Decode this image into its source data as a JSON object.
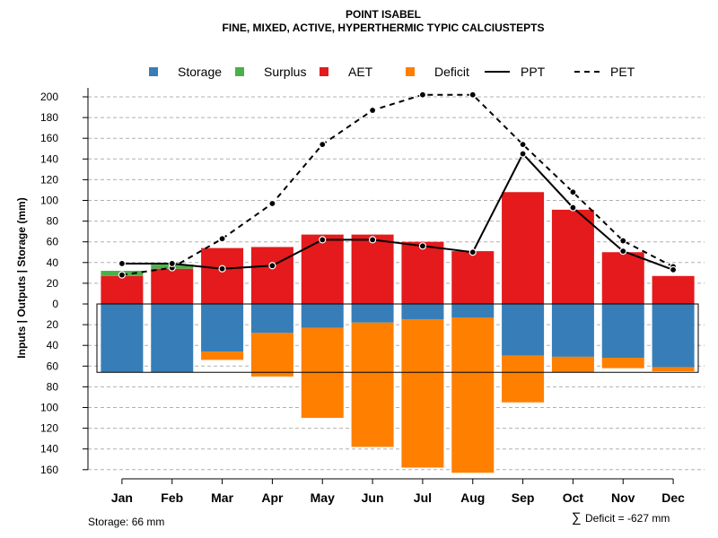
{
  "chart_data": {
    "type": "bar",
    "title": "POINT ISABEL",
    "subtitle": "FINE, MIXED, ACTIVE, HYPERTHERMIC TYPIC CALCIUSTEPTS",
    "ylabel": "Inputs | Outputs | Storage    (mm)",
    "categories": [
      "Jan",
      "Feb",
      "Mar",
      "Apr",
      "May",
      "Jun",
      "Jul",
      "Aug",
      "Sep",
      "Oct",
      "Nov",
      "Dec"
    ],
    "ytick_labels": [
      "200",
      "180",
      "160",
      "140",
      "120",
      "100",
      "80",
      "60",
      "40",
      "20",
      "0",
      "20",
      "40",
      "60",
      "80",
      "100",
      "120",
      "140",
      "160"
    ],
    "ytick_values": [
      200,
      180,
      160,
      140,
      120,
      100,
      80,
      60,
      40,
      20,
      0,
      -20,
      -40,
      -60,
      -80,
      -100,
      -120,
      -140,
      -160
    ],
    "ylim": [
      -160,
      200
    ],
    "legend": [
      {
        "label": "Storage",
        "type": "square",
        "color": "#377EB8"
      },
      {
        "label": "Surplus",
        "type": "square",
        "color": "#4DAF4A"
      },
      {
        "label": "AET",
        "type": "square",
        "color": "#E41A1C"
      },
      {
        "label": "Deficit",
        "type": "square",
        "color": "#FF7F00"
      },
      {
        "label": "PPT",
        "type": "solid-line",
        "color": "#000000"
      },
      {
        "label": "PET",
        "type": "dashed-line",
        "color": "#000000"
      }
    ],
    "series": [
      {
        "name": "AET",
        "color": "#E41A1C",
        "values": [
          27,
          34,
          54,
          55,
          67,
          67,
          60,
          51,
          108,
          91,
          50,
          27
        ]
      },
      {
        "name": "Surplus",
        "color": "#4DAF4A",
        "values": [
          5,
          4,
          0,
          0,
          0,
          0,
          0,
          0,
          0,
          0,
          0,
          0
        ]
      },
      {
        "name": "Storage",
        "color": "#377EB8",
        "values": [
          66,
          66,
          46,
          28,
          23,
          18,
          15,
          13,
          50,
          51,
          52,
          61
        ]
      },
      {
        "name": "Deficit",
        "color": "#FF7F00",
        "values": [
          0,
          0,
          8,
          42,
          87,
          120,
          143,
          150,
          45,
          15,
          10,
          4
        ]
      },
      {
        "name": "PPT",
        "color": "#000000",
        "values": [
          39,
          39,
          34,
          37,
          62,
          62,
          56,
          50,
          145,
          93,
          51,
          33
        ]
      },
      {
        "name": "PET",
        "color": "#000000",
        "values": [
          28,
          35,
          63,
          97,
          154,
          187,
          202,
          202,
          154,
          108,
          61,
          36
        ]
      }
    ],
    "storage_capacity": 66,
    "storage_text": "Storage: 66 mm",
    "deficit_symbol": "∑",
    "deficit_text": "Deficit = -627 mm"
  }
}
